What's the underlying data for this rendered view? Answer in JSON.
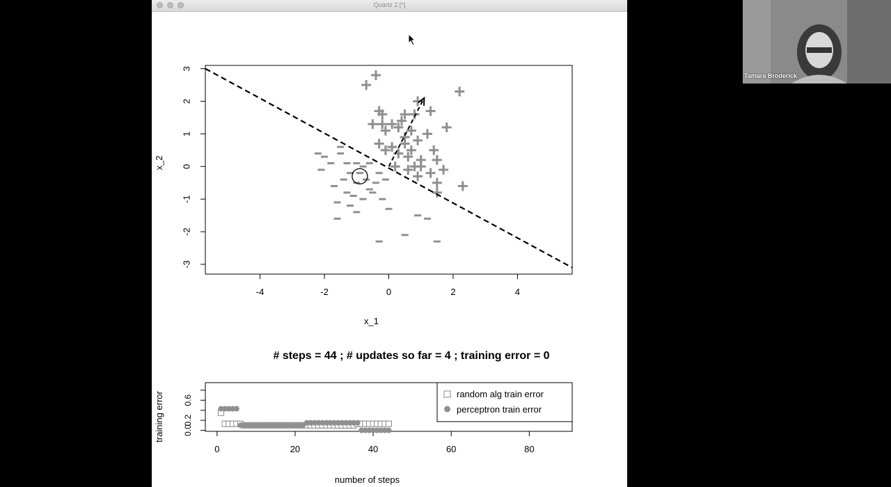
{
  "window": {
    "title": "Quartz 2 [*]",
    "controls": [
      "close",
      "minimize",
      "zoom"
    ]
  },
  "webcam": {
    "name": "Tamara Broderick"
  },
  "status_line": "# steps =  44 ; # updates so far =  4 ; training error =  0",
  "colors": {
    "points": "#8f8f8f",
    "boundary": "#000000",
    "axes": "#000000"
  },
  "chart_data": [
    {
      "type": "scatter",
      "xlabel": "x_1",
      "ylabel": "x_2",
      "xlim": [
        -5.7,
        5.7
      ],
      "ylim": [
        -3.3,
        3.1
      ],
      "xticks": [
        -4,
        -2,
        0,
        2,
        4
      ],
      "yticks": [
        -3,
        -2,
        -1,
        0,
        1,
        2,
        3
      ],
      "grid": false,
      "series": [
        {
          "marker": "plus",
          "points": [
            [
              -0.7,
              2.5
            ],
            [
              -0.4,
              2.8
            ],
            [
              0.9,
              2.0
            ],
            [
              1.3,
              1.7
            ],
            [
              2.2,
              2.3
            ],
            [
              -0.3,
              1.7
            ],
            [
              -0.2,
              1.6
            ],
            [
              0.5,
              1.6
            ],
            [
              0.8,
              1.6
            ],
            [
              -0.5,
              1.3
            ],
            [
              -0.2,
              1.3
            ],
            [
              0.1,
              1.3
            ],
            [
              0.4,
              1.4
            ],
            [
              -0.1,
              1.1
            ],
            [
              0.3,
              1.2
            ],
            [
              0.7,
              1.1
            ],
            [
              1.2,
              1.0
            ],
            [
              1.8,
              1.2
            ],
            [
              -0.3,
              0.7
            ],
            [
              0.1,
              0.6
            ],
            [
              0.5,
              0.7
            ],
            [
              0.9,
              0.8
            ],
            [
              1.4,
              0.5
            ],
            [
              -0.1,
              0.5
            ],
            [
              0.3,
              0.4
            ],
            [
              0.6,
              0.3
            ],
            [
              1.0,
              0.2
            ],
            [
              1.5,
              0.2
            ],
            [
              0.2,
              0.0
            ],
            [
              0.6,
              -0.1
            ],
            [
              1.0,
              0.0
            ],
            [
              1.3,
              -0.2
            ],
            [
              1.7,
              -0.1
            ],
            [
              0.9,
              -0.3
            ],
            [
              1.5,
              -0.5
            ],
            [
              2.3,
              -0.6
            ],
            [
              1.5,
              -0.8
            ],
            [
              0.7,
              0.5
            ],
            [
              0.8,
              0.0
            ],
            [
              0.5,
              0.9
            ]
          ]
        },
        {
          "marker": "dash",
          "points": [
            [
              -2.2,
              0.4
            ],
            [
              -2.0,
              0.3
            ],
            [
              -1.5,
              0.6
            ],
            [
              -1.5,
              0.4
            ],
            [
              -1.8,
              0.1
            ],
            [
              -1.3,
              0.1
            ],
            [
              -1.0,
              0.1
            ],
            [
              -0.6,
              0.1
            ],
            [
              -1.2,
              -0.2
            ],
            [
              -0.9,
              -0.2
            ],
            [
              -0.3,
              -0.2
            ],
            [
              -1.7,
              -0.6
            ],
            [
              -1.4,
              -0.4
            ],
            [
              -1.0,
              -0.5
            ],
            [
              -0.7,
              -0.4
            ],
            [
              -0.4,
              -0.5
            ],
            [
              -1.6,
              -1.1
            ],
            [
              -1.2,
              -1.2
            ],
            [
              -0.8,
              -1.0
            ],
            [
              -0.5,
              -0.8
            ],
            [
              -0.2,
              -1.0
            ],
            [
              -1.0,
              -1.4
            ],
            [
              -1.6,
              -1.6
            ],
            [
              0.0,
              -1.3
            ],
            [
              0.9,
              -1.5
            ],
            [
              1.2,
              -1.6
            ],
            [
              0.5,
              -2.1
            ],
            [
              1.5,
              -2.3
            ],
            [
              -0.3,
              -2.3
            ],
            [
              -1.1,
              -0.9
            ],
            [
              -0.6,
              -0.7
            ],
            [
              -1.3,
              -0.8
            ],
            [
              -2.1,
              -0.1
            ],
            [
              -0.8,
              0.0
            ],
            [
              -0.1,
              -0.4
            ]
          ]
        }
      ],
      "boundary_line": [
        [
          -5.7,
          3.0
        ],
        [
          5.7,
          -3.1
        ]
      ],
      "weight_arrow": {
        "from": [
          0.0,
          0.0
        ],
        "to": [
          1.1,
          2.1
        ]
      },
      "highlight_circle": [
        -0.9,
        -0.3
      ]
    },
    {
      "type": "scatter",
      "xlabel": "number of steps",
      "ylabel": "training error",
      "xlim": [
        -3,
        91
      ],
      "ylim": [
        -0.02,
        0.95
      ],
      "xticks": [
        0,
        20,
        40,
        60,
        80
      ],
      "yticks": [
        0.0,
        0.2,
        0.4,
        0.6,
        0.8
      ],
      "ytick_labels_shown": [
        "0.0",
        "0.2",
        "0.6"
      ],
      "legend_position": "top-right",
      "series": [
        {
          "name": "random alg train error",
          "marker": "open-square",
          "x": [
            1,
            2,
            3,
            4,
            5,
            6,
            7,
            8,
            9,
            10,
            11,
            12,
            13,
            14,
            15,
            16,
            17,
            18,
            19,
            20,
            21,
            22,
            23,
            24,
            25,
            26,
            27,
            28,
            29,
            30,
            31,
            32,
            33,
            34,
            35,
            36,
            37,
            38,
            39,
            40,
            41,
            42,
            43,
            44
          ],
          "y": [
            0.35,
            0.13,
            0.13,
            0.13,
            0.13,
            0.13,
            0.1,
            0.1,
            0.1,
            0.1,
            0.1,
            0.1,
            0.1,
            0.1,
            0.1,
            0.1,
            0.1,
            0.1,
            0.1,
            0.1,
            0.1,
            0.1,
            0.1,
            0.1,
            0.1,
            0.1,
            0.1,
            0.1,
            0.1,
            0.1,
            0.1,
            0.1,
            0.1,
            0.1,
            0.1,
            0.13,
            0.13,
            0.13,
            0.13,
            0.13,
            0.13,
            0.13,
            0.13,
            0.13
          ]
        },
        {
          "name": "perceptron train error",
          "marker": "filled-circle",
          "x": [
            1,
            2,
            3,
            4,
            5,
            6,
            7,
            8,
            9,
            10,
            11,
            12,
            13,
            14,
            15,
            16,
            17,
            18,
            19,
            20,
            21,
            22,
            23,
            24,
            25,
            26,
            27,
            28,
            29,
            30,
            31,
            32,
            33,
            34,
            35,
            36,
            37,
            38,
            39,
            40,
            41,
            42,
            43,
            44
          ],
          "y": [
            0.43,
            0.43,
            0.43,
            0.43,
            0.43,
            0.1,
            0.1,
            0.1,
            0.1,
            0.1,
            0.1,
            0.1,
            0.1,
            0.1,
            0.1,
            0.1,
            0.1,
            0.1,
            0.1,
            0.1,
            0.1,
            0.1,
            0.15,
            0.15,
            0.15,
            0.15,
            0.15,
            0.15,
            0.15,
            0.15,
            0.15,
            0.15,
            0.15,
            0.15,
            0.15,
            0.15,
            0,
            0,
            0,
            0,
            0,
            0,
            0,
            0
          ]
        }
      ]
    }
  ]
}
